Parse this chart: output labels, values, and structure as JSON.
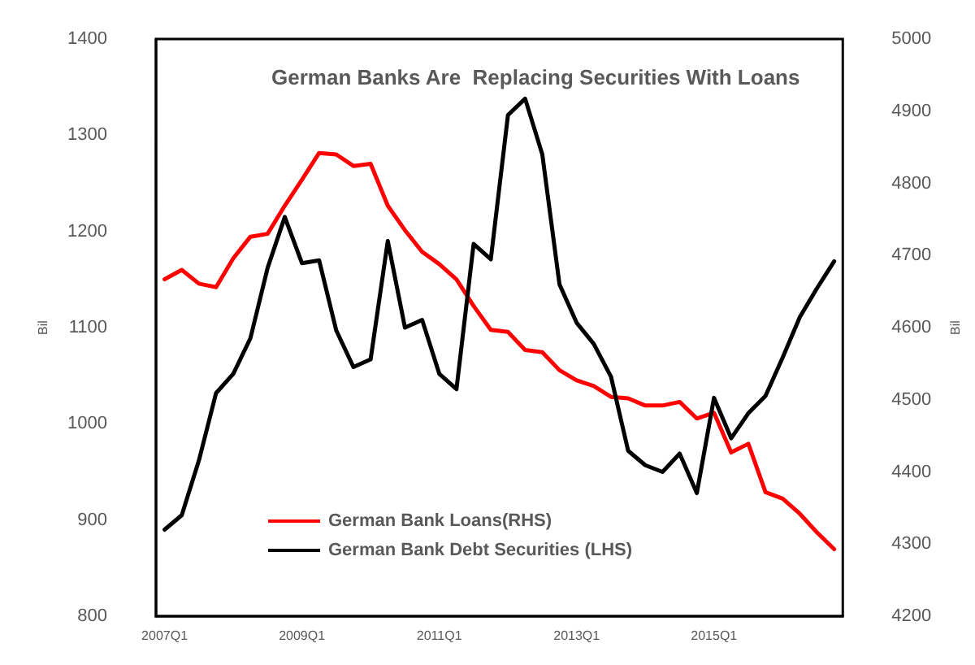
{
  "chart_data": {
    "type": "line",
    "title": "German Banks Are  Replacing Securities With Loans",
    "ylabel": "Bil",
    "y2label": "Bil",
    "categories": [
      "2007Q1",
      null,
      null,
      null,
      null,
      null,
      null,
      null,
      "2009Q1",
      null,
      null,
      null,
      null,
      null,
      null,
      null,
      "2011Q1",
      null,
      null,
      null,
      null,
      null,
      null,
      null,
      "2013Q1",
      null,
      null,
      null,
      null,
      null,
      null,
      null,
      "2015Q1",
      null,
      null,
      null,
      null,
      null,
      null,
      null
    ],
    "series": [
      {
        "name": "German Bank Loans(RHS)",
        "color": "#ff0000",
        "axis": "y2",
        "values": [
          4667,
          4680,
          4661,
          4656,
          4696,
          4726,
          4730,
          4769,
          4805,
          4842,
          4840,
          4824,
          4827,
          4769,
          4735,
          4705,
          4688,
          4667,
          4630,
          4597,
          4594,
          4569,
          4566,
          4541,
          4527,
          4519,
          4504,
          4502,
          4492,
          4492,
          4497,
          4474,
          4482,
          4427,
          4439,
          4372,
          4363,
          4342,
          4316,
          4293
        ]
      },
      {
        "name": "German Bank Debt Securities (LHS)",
        "color": "#000000",
        "axis": "y",
        "values": [
          890,
          905,
          962,
          1032,
          1052,
          1089,
          1162,
          1215,
          1167,
          1170,
          1097,
          1059,
          1067,
          1190,
          1100,
          1108,
          1052,
          1036,
          1187,
          1171,
          1321,
          1338,
          1280,
          1145,
          1105,
          1083,
          1049,
          972,
          957,
          950,
          969,
          928,
          1027,
          985,
          1011,
          1029,
          1069,
          1111,
          1141,
          1169
        ]
      }
    ],
    "ylim": [
      800,
      1400
    ],
    "yticks": [
      800,
      900,
      1000,
      1100,
      1200,
      1300,
      1400
    ],
    "y2lim": [
      4200,
      5000
    ],
    "y2ticks": [
      4200,
      4300,
      4400,
      4500,
      4600,
      4700,
      4800,
      4900,
      5000
    ],
    "legend": "bottom left",
    "grid": false,
    "marker": "none",
    "line_style": "solid"
  }
}
